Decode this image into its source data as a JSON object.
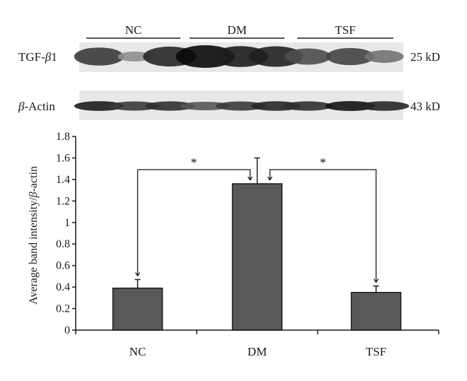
{
  "blot": {
    "groups": [
      "NC",
      "DM",
      "TSF"
    ],
    "rows": [
      {
        "label_prefix": "TGF-",
        "label_greek": "β",
        "label_suffix": "1",
        "size_label": "25 kD",
        "band_intensity": [
          0.75,
          0.3,
          0.85,
          1.0,
          0.9,
          0.88,
          0.65,
          0.7,
          0.45
        ]
      },
      {
        "label_prefix": "",
        "label_greek": "β",
        "label_suffix": "-Actin",
        "size_label": "43 kD",
        "band_intensity": [
          0.9,
          0.75,
          0.8,
          0.6,
          0.75,
          0.85,
          0.8,
          0.95,
          0.85
        ]
      }
    ]
  },
  "chart_data": {
    "type": "bar",
    "categories": [
      "NC",
      "DM",
      "TSF"
    ],
    "values": [
      0.39,
      1.36,
      0.35
    ],
    "errors": [
      0.08,
      0.24,
      0.06
    ],
    "ylabel_prefix": "Average band intensity/",
    "ylabel_greek": "β",
    "ylabel_suffix": "-actin",
    "ylim": [
      0,
      1.8
    ],
    "yticks": [
      0,
      0.2,
      0.4,
      0.6,
      0.8,
      1,
      1.2,
      1.4,
      1.6,
      1.8
    ],
    "ytick_labels": [
      "0",
      "0.2",
      "0.4",
      "0.6",
      "0.8",
      "1",
      "1.2",
      "1.4",
      "1.6",
      "1.8"
    ],
    "bar_color": "#595959",
    "significance": [
      {
        "from": "NC",
        "to": "DM",
        "label": "*"
      },
      {
        "from": "DM",
        "to": "TSF",
        "label": "*"
      }
    ],
    "grid": false,
    "legend": "none"
  }
}
